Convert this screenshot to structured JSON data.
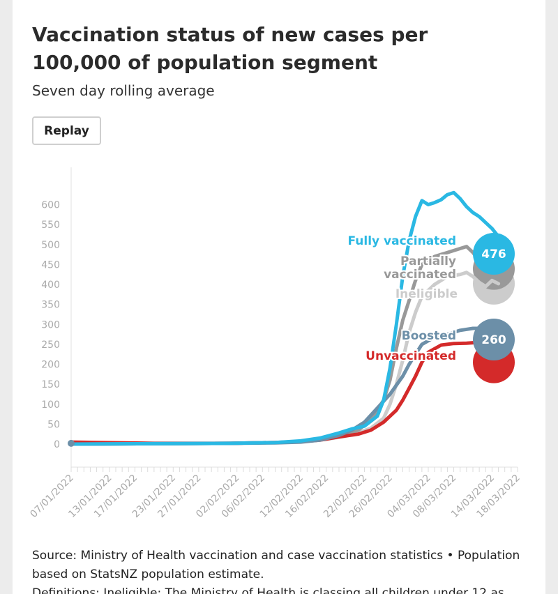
{
  "header": {
    "title": "Vaccination status of new cases per 100,000 of population segment",
    "subtitle": "Seven day rolling average",
    "replay_label": "Replay"
  },
  "footer": {
    "source": "Source: Ministry of Health vaccination and case vaccination statistics • Population based on StatsNZ population estimate.",
    "definitions": "Definitions: Ineligible: The Ministry of Health is classing all children under 12 as"
  },
  "colors": {
    "fully_vaccinated": "#2ab8e3",
    "partially_vaccinated": "#999999",
    "ineligible": "#cccccc",
    "boosted": "#6c8fa8",
    "unvaccinated": "#d42a2a",
    "axis_text": "#aaaaaa"
  },
  "chart_data": {
    "type": "line",
    "title": "Vaccination status of new cases per 100,000 of population segment",
    "subtitle": "Seven day rolling average",
    "xlabel": "",
    "ylabel": "",
    "ylim": [
      0,
      600
    ],
    "yticks": [
      0,
      50,
      100,
      150,
      200,
      250,
      300,
      350,
      400,
      450,
      500,
      550,
      600
    ],
    "xlim": [
      "2022-01-07",
      "2022-03-18"
    ],
    "x_tick_labels": [
      "07/01/2022",
      "13/01/2022",
      "17/01/2022",
      "23/01/2022",
      "27/01/2022",
      "02/02/2022",
      "06/02/2022",
      "12/02/2022",
      "16/02/2022",
      "22/02/2022",
      "26/02/2022",
      "04/03/2022",
      "08/03/2022",
      "14/03/2022",
      "18/03/2022"
    ],
    "grid": false,
    "series": [
      {
        "name": "Fully vaccinated",
        "key": "fully_vaccinated",
        "end_value": 476,
        "points": [
          [
            "2022-01-07",
            0
          ],
          [
            "2022-01-20",
            1
          ],
          [
            "2022-02-01",
            2
          ],
          [
            "2022-02-08",
            4
          ],
          [
            "2022-02-12",
            8
          ],
          [
            "2022-02-15",
            15
          ],
          [
            "2022-02-18",
            28
          ],
          [
            "2022-02-20",
            38
          ],
          [
            "2022-02-22",
            45
          ],
          [
            "2022-02-24",
            70
          ],
          [
            "2022-02-25",
            110
          ],
          [
            "2022-02-26",
            190
          ],
          [
            "2022-02-27",
            300
          ],
          [
            "2022-02-28",
            420
          ],
          [
            "2022-03-01",
            510
          ],
          [
            "2022-03-02",
            570
          ],
          [
            "2022-03-03",
            610
          ],
          [
            "2022-03-04",
            600
          ],
          [
            "2022-03-05",
            605
          ],
          [
            "2022-03-06",
            612
          ],
          [
            "2022-03-07",
            625
          ],
          [
            "2022-03-08",
            630
          ],
          [
            "2022-03-09",
            615
          ],
          [
            "2022-03-10",
            595
          ],
          [
            "2022-03-11",
            580
          ],
          [
            "2022-03-12",
            570
          ],
          [
            "2022-03-13",
            555
          ],
          [
            "2022-03-14",
            540
          ],
          [
            "2022-03-15",
            520
          ],
          [
            "2022-03-16",
            500
          ],
          [
            "2022-03-17",
            476
          ]
        ]
      },
      {
        "name": "Partially vaccinated",
        "key": "partially_vaccinated",
        "end_value": 460,
        "points": [
          [
            "2022-01-07",
            0
          ],
          [
            "2022-01-20",
            1
          ],
          [
            "2022-02-01",
            2
          ],
          [
            "2022-02-08",
            4
          ],
          [
            "2022-02-12",
            7
          ],
          [
            "2022-02-16",
            14
          ],
          [
            "2022-02-19",
            25
          ],
          [
            "2022-02-21",
            35
          ],
          [
            "2022-02-23",
            60
          ],
          [
            "2022-02-25",
            110
          ],
          [
            "2022-02-26",
            160
          ],
          [
            "2022-02-27",
            240
          ],
          [
            "2022-02-28",
            310
          ],
          [
            "2022-03-01",
            360
          ],
          [
            "2022-03-02",
            410
          ],
          [
            "2022-03-03",
            450
          ],
          [
            "2022-03-05",
            470
          ],
          [
            "2022-03-07",
            480
          ],
          [
            "2022-03-09",
            490
          ],
          [
            "2022-03-10",
            495
          ],
          [
            "2022-03-11",
            480
          ],
          [
            "2022-03-12",
            460
          ],
          [
            "2022-03-13",
            450
          ],
          [
            "2022-03-14",
            470
          ],
          [
            "2022-03-15",
            460
          ]
        ]
      },
      {
        "name": "Ineligible",
        "key": "ineligible",
        "end_value": 402,
        "points": [
          [
            "2022-01-07",
            0
          ],
          [
            "2022-01-20",
            1
          ],
          [
            "2022-02-01",
            2
          ],
          [
            "2022-02-08",
            4
          ],
          [
            "2022-02-12",
            6
          ],
          [
            "2022-02-16",
            12
          ],
          [
            "2022-02-19",
            20
          ],
          [
            "2022-02-21",
            28
          ],
          [
            "2022-02-23",
            40
          ],
          [
            "2022-02-25",
            65
          ],
          [
            "2022-02-26",
            100
          ],
          [
            "2022-02-27",
            150
          ],
          [
            "2022-02-28",
            210
          ],
          [
            "2022-03-01",
            280
          ],
          [
            "2022-03-02",
            330
          ],
          [
            "2022-03-03",
            370
          ],
          [
            "2022-03-05",
            400
          ],
          [
            "2022-03-07",
            420
          ],
          [
            "2022-03-09",
            425
          ],
          [
            "2022-03-10",
            430
          ],
          [
            "2022-03-11",
            420
          ],
          [
            "2022-03-12",
            405
          ],
          [
            "2022-03-13",
            395
          ],
          [
            "2022-03-14",
            410
          ],
          [
            "2022-03-15",
            402
          ]
        ]
      },
      {
        "name": "Boosted",
        "key": "boosted",
        "end_value": 260,
        "points": [
          [
            "2022-01-07",
            0
          ],
          [
            "2022-01-20",
            1
          ],
          [
            "2022-02-01",
            2
          ],
          [
            "2022-02-08",
            3
          ],
          [
            "2022-02-12",
            5
          ],
          [
            "2022-02-15",
            10
          ],
          [
            "2022-02-18",
            22
          ],
          [
            "2022-02-20",
            35
          ],
          [
            "2022-02-22",
            55
          ],
          [
            "2022-02-24",
            90
          ],
          [
            "2022-02-26",
            125
          ],
          [
            "2022-02-28",
            170
          ],
          [
            "2022-03-01",
            200
          ],
          [
            "2022-03-02",
            225
          ],
          [
            "2022-03-03",
            250
          ],
          [
            "2022-03-05",
            268
          ],
          [
            "2022-03-07",
            275
          ],
          [
            "2022-03-09",
            285
          ],
          [
            "2022-03-11",
            290
          ],
          [
            "2022-03-13",
            290
          ],
          [
            "2022-03-15",
            285
          ],
          [
            "2022-03-16",
            275
          ],
          [
            "2022-03-17",
            260
          ]
        ]
      },
      {
        "name": "Unvaccinated",
        "key": "unvaccinated",
        "end_value": 240,
        "points": [
          [
            "2022-01-07",
            5
          ],
          [
            "2022-01-20",
            2
          ],
          [
            "2022-02-01",
            2
          ],
          [
            "2022-02-08",
            4
          ],
          [
            "2022-02-12",
            6
          ],
          [
            "2022-02-15",
            10
          ],
          [
            "2022-02-18",
            18
          ],
          [
            "2022-02-21",
            25
          ],
          [
            "2022-02-23",
            35
          ],
          [
            "2022-02-25",
            55
          ],
          [
            "2022-02-27",
            85
          ],
          [
            "2022-02-28",
            110
          ],
          [
            "2022-03-01",
            140
          ],
          [
            "2022-03-02",
            170
          ],
          [
            "2022-03-03",
            205
          ],
          [
            "2022-03-04",
            230
          ],
          [
            "2022-03-06",
            248
          ],
          [
            "2022-03-08",
            252
          ],
          [
            "2022-03-10",
            253
          ],
          [
            "2022-03-12",
            255
          ],
          [
            "2022-03-14",
            252
          ],
          [
            "2022-03-16",
            240
          ]
        ]
      }
    ],
    "end_labels": [
      {
        "series": "Fully vaccinated",
        "text": "476"
      },
      {
        "series": "Boosted",
        "text": "260"
      }
    ]
  }
}
